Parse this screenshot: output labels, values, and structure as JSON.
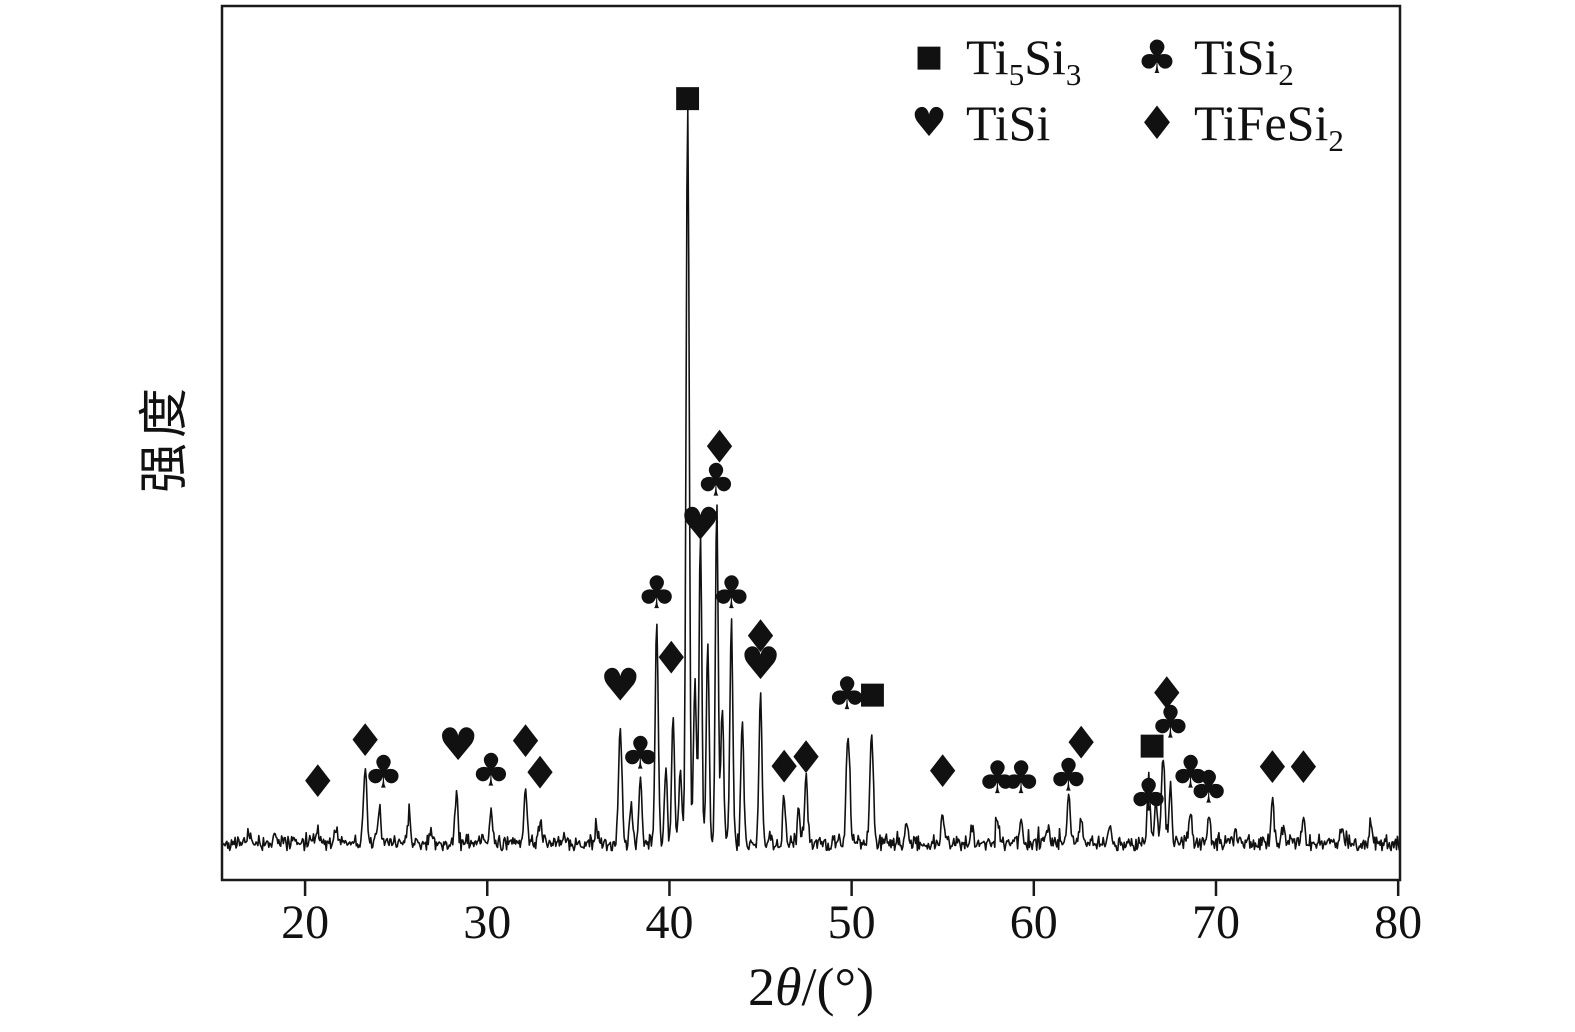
{
  "figure": {
    "background": "#ffffff",
    "frame_color": "#1a1a1a",
    "line_color": "#111111"
  },
  "chart_data": {
    "type": "line",
    "chart_kind": "xrd-diffraction-pattern",
    "title": "",
    "xlabel": "2θ/(°)",
    "ylabel": "强度",
    "xlim": [
      15.44,
      80.1
    ],
    "ylim": [
      0,
      1.14
    ],
    "x_ticks": [
      20,
      30,
      40,
      50,
      60,
      70,
      80
    ],
    "y_ticks": [],
    "grid": false,
    "baseline": 0.012,
    "noise_amplitude": 0.013,
    "legend": {
      "position": "top-right",
      "items": [
        {
          "symbol": "square",
          "label": "Ti5Si3"
        },
        {
          "symbol": "club",
          "label": "TiSi2"
        },
        {
          "symbol": "heart",
          "label": "TiSi"
        },
        {
          "symbol": "diamond",
          "label": "TiFeSi2"
        }
      ]
    },
    "peaks": [
      {
        "x": 16.9,
        "h": 0.012,
        "w": 0.11
      },
      {
        "x": 18.3,
        "h": 0.01,
        "w": 0.11
      },
      {
        "x": 19.4,
        "h": 0.01,
        "w": 0.11
      },
      {
        "x": 20.7,
        "h": 0.018,
        "w": 0.11
      },
      {
        "x": 21.7,
        "h": 0.022,
        "w": 0.11
      },
      {
        "x": 23.3,
        "h": 0.105,
        "w": 0.13
      },
      {
        "x": 24.1,
        "h": 0.045,
        "w": 0.11
      },
      {
        "x": 25.7,
        "h": 0.035,
        "w": 0.11
      },
      {
        "x": 26.9,
        "h": 0.015,
        "w": 0.11
      },
      {
        "x": 28.3,
        "h": 0.065,
        "w": 0.12
      },
      {
        "x": 30.2,
        "h": 0.05,
        "w": 0.11
      },
      {
        "x": 32.1,
        "h": 0.075,
        "w": 0.12
      },
      {
        "x": 32.9,
        "h": 0.03,
        "w": 0.11
      },
      {
        "x": 34.2,
        "h": 0.012,
        "w": 0.11
      },
      {
        "x": 36.0,
        "h": 0.018,
        "w": 0.11
      },
      {
        "x": 37.3,
        "h": 0.155,
        "w": 0.13
      },
      {
        "x": 37.9,
        "h": 0.05,
        "w": 0.11
      },
      {
        "x": 38.4,
        "h": 0.095,
        "w": 0.11
      },
      {
        "x": 39.3,
        "h": 0.3,
        "w": 0.12
      },
      {
        "x": 39.8,
        "h": 0.1,
        "w": 0.11
      },
      {
        "x": 40.2,
        "h": 0.17,
        "w": 0.11
      },
      {
        "x": 40.6,
        "h": 0.1,
        "w": 0.11
      },
      {
        "x": 41.0,
        "h": 1.0,
        "w": 0.12
      },
      {
        "x": 41.4,
        "h": 0.22,
        "w": 0.11
      },
      {
        "x": 41.7,
        "h": 0.42,
        "w": 0.11
      },
      {
        "x": 42.1,
        "h": 0.28,
        "w": 0.11
      },
      {
        "x": 42.6,
        "h": 0.46,
        "w": 0.11
      },
      {
        "x": 42.9,
        "h": 0.18,
        "w": 0.11
      },
      {
        "x": 43.4,
        "h": 0.3,
        "w": 0.11
      },
      {
        "x": 44.0,
        "h": 0.17,
        "w": 0.11
      },
      {
        "x": 45.0,
        "h": 0.2,
        "w": 0.12
      },
      {
        "x": 46.3,
        "h": 0.06,
        "w": 0.11
      },
      {
        "x": 47.1,
        "h": 0.045,
        "w": 0.11
      },
      {
        "x": 47.5,
        "h": 0.09,
        "w": 0.11
      },
      {
        "x": 49.8,
        "h": 0.15,
        "w": 0.13
      },
      {
        "x": 51.1,
        "h": 0.15,
        "w": 0.13
      },
      {
        "x": 53.0,
        "h": 0.03,
        "w": 0.11
      },
      {
        "x": 55.0,
        "h": 0.04,
        "w": 0.11
      },
      {
        "x": 56.6,
        "h": 0.018,
        "w": 0.11
      },
      {
        "x": 58.0,
        "h": 0.03,
        "w": 0.11
      },
      {
        "x": 59.3,
        "h": 0.03,
        "w": 0.11
      },
      {
        "x": 60.8,
        "h": 0.022,
        "w": 0.11
      },
      {
        "x": 61.9,
        "h": 0.065,
        "w": 0.11
      },
      {
        "x": 62.6,
        "h": 0.035,
        "w": 0.11
      },
      {
        "x": 64.2,
        "h": 0.018,
        "w": 0.11
      },
      {
        "x": 66.3,
        "h": 0.09,
        "w": 0.11
      },
      {
        "x": 66.7,
        "h": 0.06,
        "w": 0.11
      },
      {
        "x": 67.1,
        "h": 0.12,
        "w": 0.13
      },
      {
        "x": 67.5,
        "h": 0.08,
        "w": 0.11
      },
      {
        "x": 68.6,
        "h": 0.045,
        "w": 0.11
      },
      {
        "x": 69.6,
        "h": 0.035,
        "w": 0.11
      },
      {
        "x": 71.1,
        "h": 0.018,
        "w": 0.11
      },
      {
        "x": 73.1,
        "h": 0.055,
        "w": 0.11
      },
      {
        "x": 73.7,
        "h": 0.025,
        "w": 0.11
      },
      {
        "x": 74.8,
        "h": 0.035,
        "w": 0.11
      },
      {
        "x": 76.9,
        "h": 0.022,
        "w": 0.11
      },
      {
        "x": 78.5,
        "h": 0.028,
        "w": 0.11
      }
    ],
    "peak_markers": [
      {
        "x": 20.7,
        "y": 0.095,
        "symbol": "diamond"
      },
      {
        "x": 23.3,
        "y": 0.151,
        "symbol": "diamond"
      },
      {
        "x": 24.3,
        "y": 0.108,
        "symbol": "club"
      },
      {
        "x": 28.4,
        "y": 0.145,
        "symbol": "heart"
      },
      {
        "x": 30.2,
        "y": 0.111,
        "symbol": "club"
      },
      {
        "x": 32.1,
        "y": 0.149,
        "symbol": "diamond"
      },
      {
        "x": 32.9,
        "y": 0.107,
        "symbol": "diamond"
      },
      {
        "x": 37.3,
        "y": 0.226,
        "symbol": "heart"
      },
      {
        "x": 38.4,
        "y": 0.134,
        "symbol": "club"
      },
      {
        "x": 39.3,
        "y": 0.351,
        "symbol": "club"
      },
      {
        "x": 40.1,
        "y": 0.262,
        "symbol": "diamond"
      },
      {
        "x": 41.0,
        "y": 1.02,
        "symbol": "square"
      },
      {
        "x": 41.7,
        "y": 0.443,
        "symbol": "heart"
      },
      {
        "x": 42.55,
        "y": 0.503,
        "symbol": "club"
      },
      {
        "x": 42.75,
        "y": 0.547,
        "symbol": "diamond"
      },
      {
        "x": 43.4,
        "y": 0.351,
        "symbol": "club"
      },
      {
        "x": 45.0,
        "y": 0.291,
        "symbol": "diamond"
      },
      {
        "x": 45.0,
        "y": 0.255,
        "symbol": "heart"
      },
      {
        "x": 46.3,
        "y": 0.115,
        "symbol": "diamond"
      },
      {
        "x": 47.5,
        "y": 0.128,
        "symbol": "diamond"
      },
      {
        "x": 49.75,
        "y": 0.214,
        "symbol": "club"
      },
      {
        "x": 51.15,
        "y": 0.214,
        "symbol": "square"
      },
      {
        "x": 55.0,
        "y": 0.109,
        "symbol": "diamond"
      },
      {
        "x": 58.0,
        "y": 0.101,
        "symbol": "club"
      },
      {
        "x": 59.3,
        "y": 0.101,
        "symbol": "club"
      },
      {
        "x": 61.9,
        "y": 0.104,
        "symbol": "club"
      },
      {
        "x": 62.6,
        "y": 0.147,
        "symbol": "diamond"
      },
      {
        "x": 66.3,
        "y": 0.077,
        "symbol": "club"
      },
      {
        "x": 66.5,
        "y": 0.145,
        "symbol": "square"
      },
      {
        "x": 67.3,
        "y": 0.214,
        "symbol": "diamond"
      },
      {
        "x": 67.5,
        "y": 0.176,
        "symbol": "club"
      },
      {
        "x": 68.6,
        "y": 0.108,
        "symbol": "club"
      },
      {
        "x": 69.6,
        "y": 0.088,
        "symbol": "club"
      },
      {
        "x": 73.1,
        "y": 0.114,
        "symbol": "diamond"
      },
      {
        "x": 74.8,
        "y": 0.114,
        "symbol": "diamond"
      }
    ]
  },
  "symbols": {
    "square": "■",
    "club": "♣",
    "heart": "♥",
    "diamond": "♦"
  }
}
